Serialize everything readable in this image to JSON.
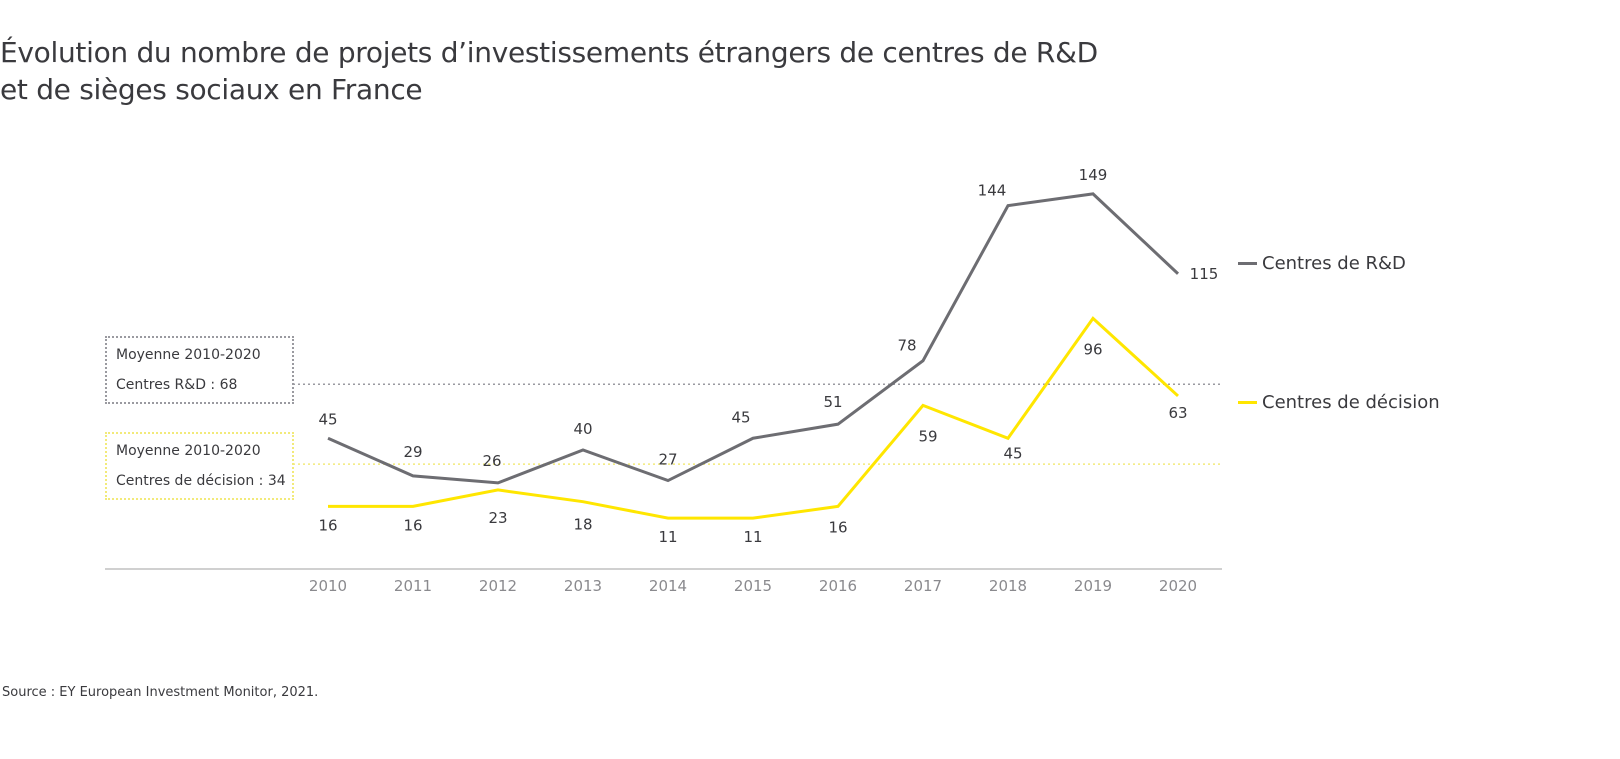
{
  "title": {
    "line1": "Évolution du nombre de projets d’investissements étrangers de centres de R&D",
    "line2": "et de sièges sociaux en France"
  },
  "source": "Source : EY European Investment Monitor, 2021.",
  "colors": {
    "rd": "#6d6d72",
    "decision": "#ffe600",
    "axis": "#d0d0d0",
    "tick_text": "#8a8a8e",
    "label_text": "#3a3a3e",
    "avg_rd": "#9a9aa0",
    "avg_decision": "#f2ea7a"
  },
  "averages": {
    "rd": {
      "line1": "Moyenne 2010-2020",
      "line2": "Centres R&D : 68",
      "value": 68
    },
    "decision": {
      "line1": "Moyenne 2010-2020",
      "line2": "Centres de décision : 34",
      "value": 34
    }
  },
  "legend": {
    "rd": "Centres de R&D",
    "decision": "Centres de décision"
  },
  "chart_data": {
    "type": "line",
    "title": "Évolution du nombre de projets d’investissements étrangers de centres de R&D et de sièges sociaux en France",
    "xlabel": "",
    "ylabel": "",
    "x": [
      "2010",
      "2011",
      "2012",
      "2013",
      "2014",
      "2015",
      "2016",
      "2017",
      "2018",
      "2019",
      "2020"
    ],
    "series": [
      {
        "name": "Centres de R&D",
        "values": [
          45,
          29,
          26,
          40,
          27,
          45,
          51,
          78,
          144,
          149,
          115
        ]
      },
      {
        "name": "Centres de décision",
        "values": [
          16,
          16,
          23,
          18,
          11,
          11,
          16,
          59,
          45,
          96,
          63
        ]
      }
    ],
    "reference_lines": [
      {
        "name": "Moyenne 2010-2020 Centres R&D",
        "value": 68
      },
      {
        "name": "Moyenne 2010-2020 Centres de décision",
        "value": 34
      }
    ],
    "ylim": [
      0,
      160
    ],
    "grid": false,
    "legend_position": "right",
    "data_labels": true
  }
}
